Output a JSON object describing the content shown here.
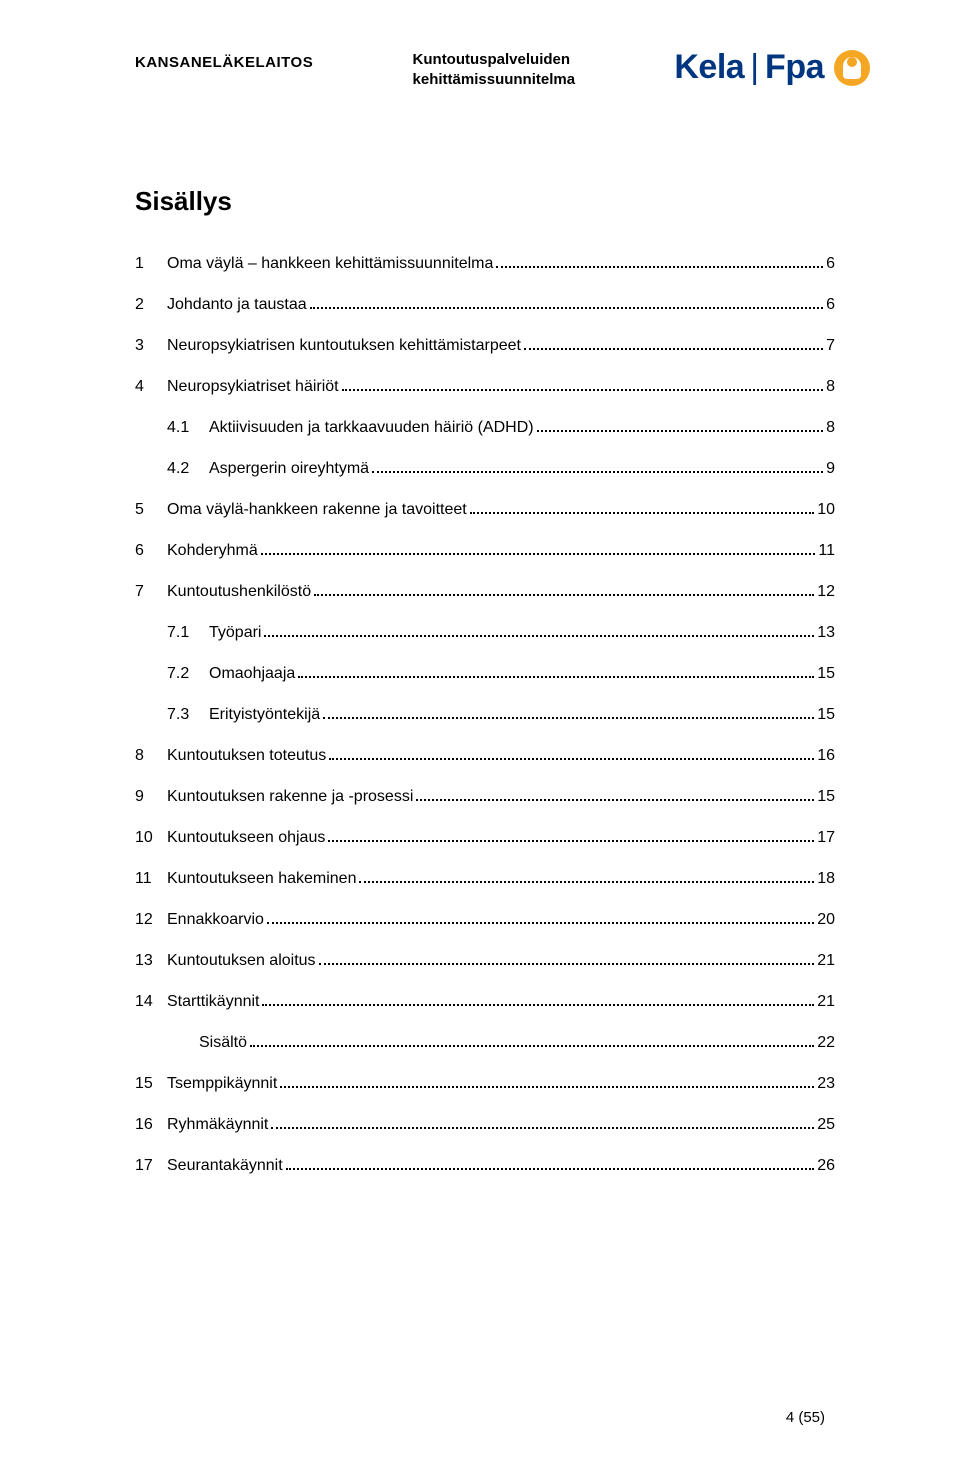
{
  "header": {
    "brand_left": "KANSANELÄKELAITOS",
    "title_line1": "Kuntoutuspalveluiden",
    "title_line2": "kehittämissuunnitelma",
    "logo_text1": "Kela",
    "logo_divider": "|",
    "logo_text2": "Fpa"
  },
  "toc": {
    "title": "Sisällys",
    "entries": [
      {
        "num": "1",
        "text": "Oma väylä – hankkeen kehittämissuunnitelma",
        "page": "6",
        "level": 1
      },
      {
        "num": "2",
        "text": "Johdanto ja taustaa",
        "page": "6",
        "level": 1
      },
      {
        "num": "3",
        "text": "Neuropsykiatrisen kuntoutuksen kehittämistarpeet",
        "page": "7",
        "level": 1
      },
      {
        "num": "4",
        "text": "Neuropsykiatriset häiriöt",
        "page": "8",
        "level": 1
      },
      {
        "num": "4.1",
        "text": "Aktiivisuuden ja tarkkaavuuden häiriö (ADHD)",
        "page": "8",
        "level": 2
      },
      {
        "num": "4.2",
        "text": "Aspergerin oireyhtymä",
        "page": "9",
        "level": 2
      },
      {
        "num": "5",
        "text": "Oma väylä-hankkeen rakenne ja tavoitteet",
        "page": "10",
        "level": 1
      },
      {
        "num": "6",
        "text": "Kohderyhmä",
        "page": "11",
        "level": 1
      },
      {
        "num": "7",
        "text": "Kuntoutushenkilöstö",
        "page": "12",
        "level": 1
      },
      {
        "num": "7.1",
        "text": "Työpari",
        "page": "13",
        "level": 2
      },
      {
        "num": "7.2",
        "text": "Omaohjaaja",
        "page": "15",
        "level": 2
      },
      {
        "num": "7.3",
        "text": "Erityistyöntekijä",
        "page": "15",
        "level": 2
      },
      {
        "num": "8",
        "text": "Kuntoutuksen toteutus",
        "page": "16",
        "level": 1
      },
      {
        "num": "9",
        "text": "Kuntoutuksen rakenne ja -prosessi",
        "page": "15",
        "level": 1
      },
      {
        "num": "10",
        "text": "Kuntoutukseen ohjaus",
        "page": "17",
        "level": 1
      },
      {
        "num": "11",
        "text": "Kuntoutukseen hakeminen",
        "page": "18",
        "level": 1
      },
      {
        "num": "12",
        "text": "Ennakkoarvio",
        "page": "20",
        "level": 1
      },
      {
        "num": "13",
        "text": "Kuntoutuksen aloitus",
        "page": "21",
        "level": 1
      },
      {
        "num": "14",
        "text": "Starttikäynnit",
        "page": "21",
        "level": 1
      },
      {
        "num": "",
        "text": "Sisältö",
        "page": "22",
        "level": 3
      },
      {
        "num": "15",
        "text": "Tsemppikäynnit",
        "page": "23",
        "level": 1
      },
      {
        "num": "16",
        "text": "Ryhmäkäynnit",
        "page": "25",
        "level": 1
      },
      {
        "num": "17",
        "text": "Seurantakäynnit",
        "page": "26",
        "level": 1
      }
    ]
  },
  "footer": {
    "page_number": "4 (55)"
  },
  "colors": {
    "text": "#000000",
    "logo_blue": "#003580",
    "logo_orange": "#f5a623",
    "background": "#ffffff"
  },
  "typography": {
    "body_fontsize": 16,
    "title_fontsize": 26,
    "header_fontsize": 15
  }
}
